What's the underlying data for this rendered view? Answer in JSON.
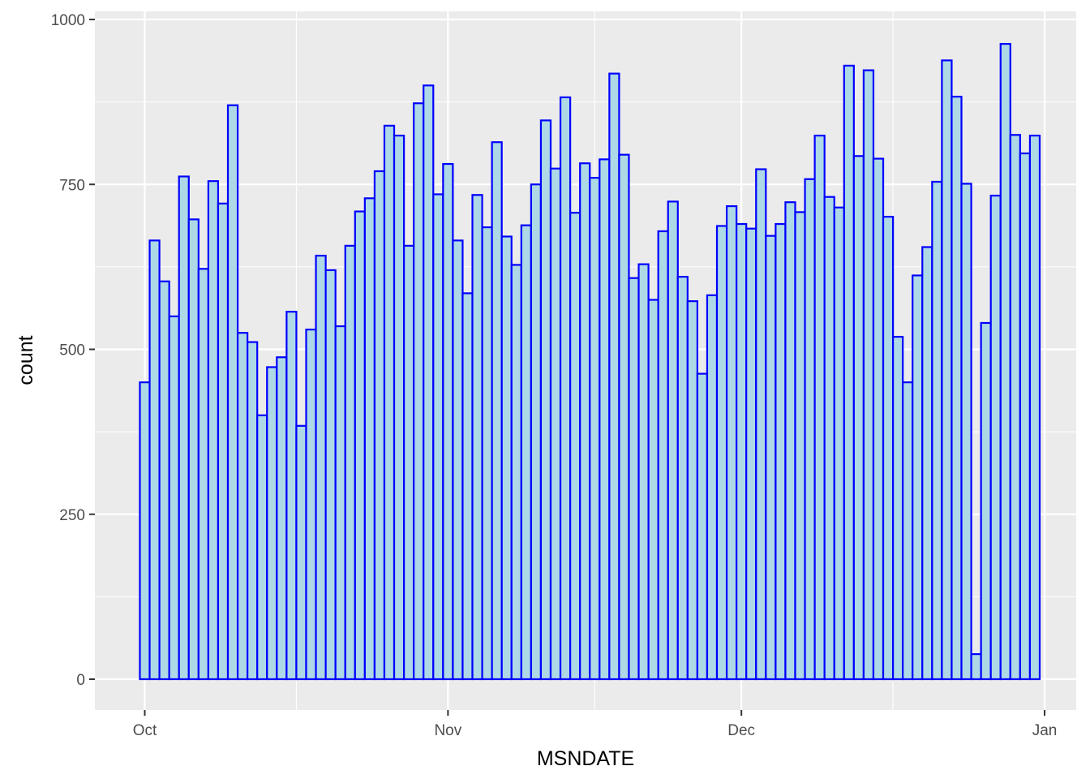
{
  "chart_data": {
    "type": "bar",
    "subtype": "histogram",
    "title": "",
    "xlabel": "MSNDATE",
    "ylabel": "count",
    "x_ticks": [
      {
        "label": "Oct",
        "day": 0
      },
      {
        "label": "Nov",
        "day": 31
      },
      {
        "label": "Dec",
        "day": 61
      },
      {
        "label": "Jan",
        "day": 92
      }
    ],
    "y_ticks": [
      0,
      250,
      500,
      750,
      1000
    ],
    "ylim": [
      0,
      1000
    ],
    "bin_width_days": 1,
    "first_bin_start_day": -0.5,
    "values": [
      450,
      665,
      603,
      550,
      762,
      697,
      622,
      755,
      721,
      870,
      525,
      511,
      400,
      473,
      488,
      557,
      384,
      530,
      642,
      620,
      535,
      657,
      709,
      729,
      770,
      839,
      824,
      657,
      873,
      900,
      735,
      781,
      665,
      585,
      734,
      685,
      814,
      671,
      628,
      688,
      750,
      847,
      774,
      882,
      707,
      782,
      760,
      788,
      918,
      795,
      608,
      629,
      575,
      679,
      724,
      610,
      573,
      463,
      582,
      687,
      717,
      690,
      683,
      773,
      672,
      690,
      723,
      708,
      758,
      824,
      731,
      715,
      930,
      793,
      923,
      789,
      701,
      519,
      450,
      612,
      655,
      754,
      938,
      883,
      751,
      38,
      540,
      733,
      963,
      825,
      797,
      824
    ],
    "fill_color": "#add8e6",
    "outline_color": "#0000ff",
    "panel_background": "#ebebeb",
    "grid_color": "#ffffff",
    "grid": true,
    "legend": "none"
  }
}
